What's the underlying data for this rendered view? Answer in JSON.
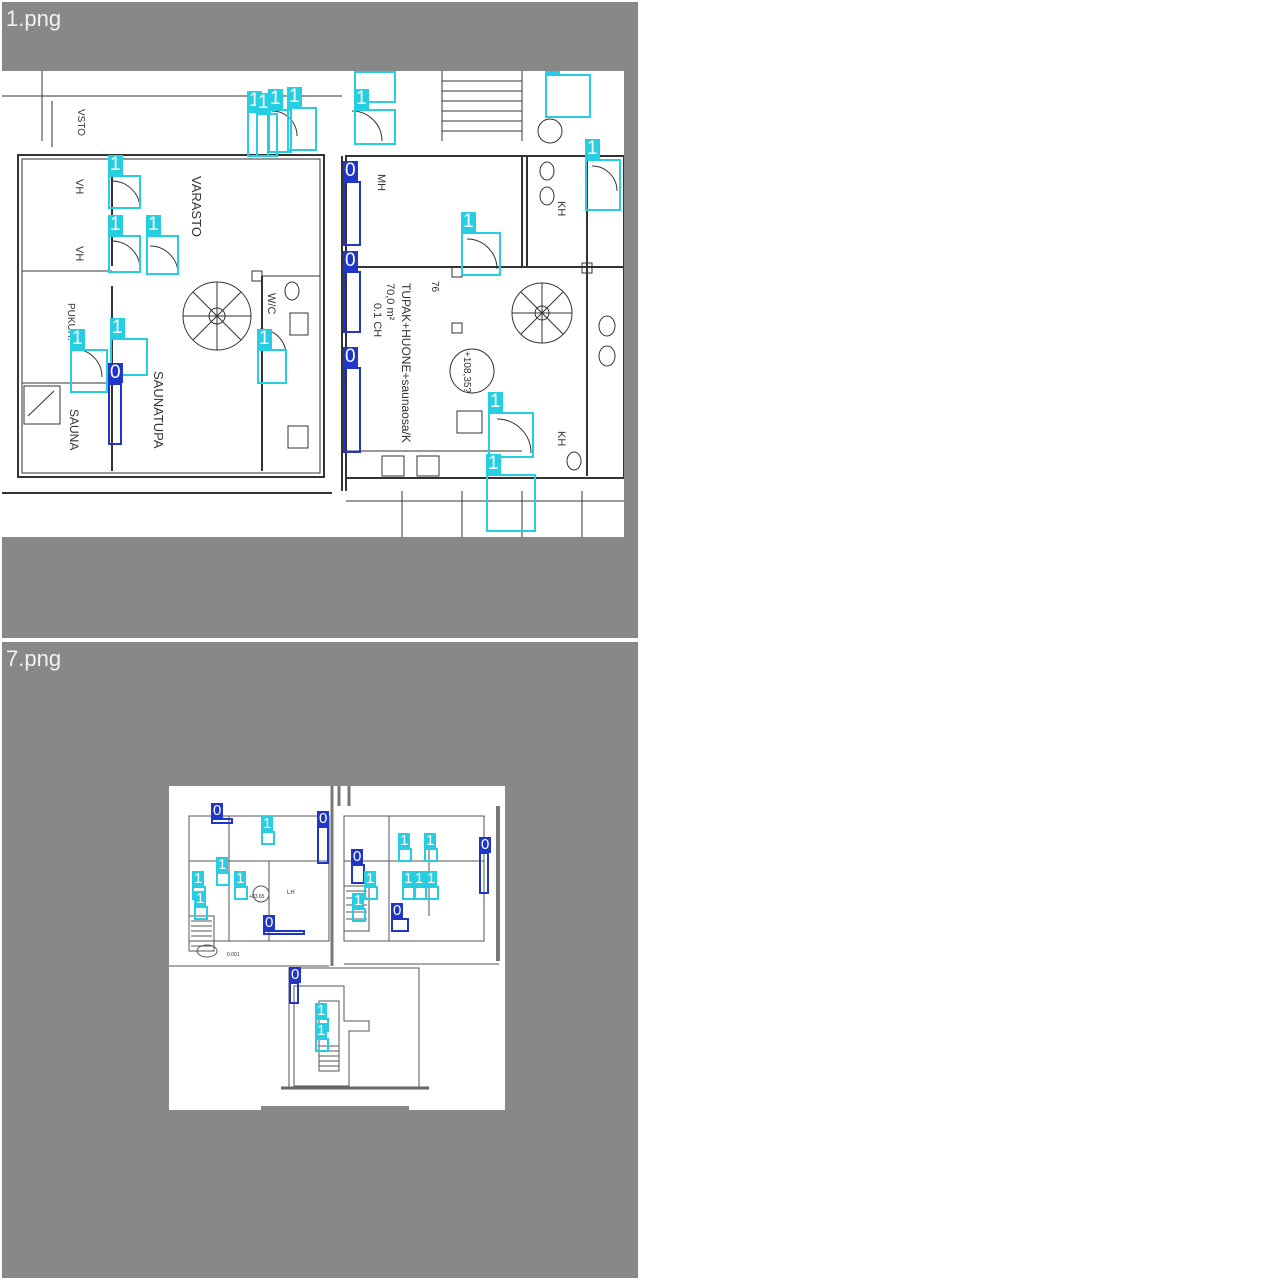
{
  "panels": [
    {
      "title": "1.png"
    },
    {
      "title": "7.png"
    }
  ],
  "class_colors": {
    "0": "#1f36c6",
    "1": "#27cde0"
  },
  "plan1_texts": {
    "varasto": "VARASTO",
    "vh1": "VH",
    "vh2": "VH",
    "wc": "W/C",
    "pukuh": "PUKUH.",
    "sauna": "SAUNA",
    "saunatupa": "SAUNATUPA",
    "mh": "MH",
    "tupak": "TUPAK+HUONE+saunaosa/K",
    "area": "70,0 m²",
    "ch": "0.1 CH",
    "level": "+108,35?",
    "kh": "KH",
    "kh2": "KH",
    "ap": "76",
    "vsto": "VSTO"
  },
  "plan2_texts": {
    "level": "LH",
    "a": "+83.65",
    "b": "0.001"
  },
  "detections": {
    "plan1": [
      {
        "label": "1"
      },
      {
        "label": "1"
      },
      {
        "label": "1"
      },
      {
        "label": "1"
      },
      {
        "label": "1"
      },
      {
        "label": "1"
      },
      {
        "label": "1"
      },
      {
        "label": "1"
      },
      {
        "label": "1"
      },
      {
        "label": "1"
      },
      {
        "label": "1"
      },
      {
        "label": "1"
      },
      {
        "label": "1"
      },
      {
        "label": "1"
      },
      {
        "label": "1"
      },
      {
        "label": "1"
      },
      {
        "label": "0"
      },
      {
        "label": "0"
      },
      {
        "label": "0"
      },
      {
        "label": "0"
      }
    ],
    "plan2": [
      {
        "label": "0"
      },
      {
        "label": "1"
      },
      {
        "label": "0"
      },
      {
        "label": "1"
      },
      {
        "label": "1"
      },
      {
        "label": "1"
      },
      {
        "label": "1"
      },
      {
        "label": "0"
      },
      {
        "label": "0"
      },
      {
        "label": "1"
      },
      {
        "label": "1"
      },
      {
        "label": "0"
      },
      {
        "label": "1"
      },
      {
        "label": "1"
      },
      {
        "label": "1"
      },
      {
        "label": "1"
      },
      {
        "label": "1"
      },
      {
        "label": "0"
      },
      {
        "label": "0"
      },
      {
        "label": "1"
      },
      {
        "label": "1"
      }
    ]
  }
}
